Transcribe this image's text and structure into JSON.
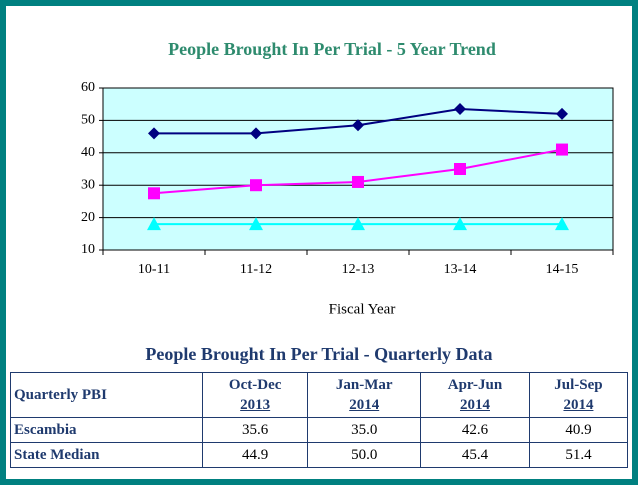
{
  "chart_data": {
    "type": "line",
    "title": "People Brought In Per Trial - 5 Year Trend",
    "x_label": "Fiscal Year",
    "categories": [
      "10-11",
      "11-12",
      "12-13",
      "13-14",
      "14-15"
    ],
    "series": [
      {
        "color": "#000080",
        "marker": "diamond",
        "values": [
          46,
          46,
          48.5,
          53.5,
          52
        ]
      },
      {
        "color": "#ff00ff",
        "marker": "square",
        "values": [
          27.5,
          30,
          31,
          35,
          41
        ]
      },
      {
        "color": "#00ffff",
        "marker": "triangle",
        "values": [
          18,
          18,
          18,
          18,
          18
        ]
      }
    ],
    "ylim": [
      10,
      60
    ],
    "yticks": [
      10,
      20,
      30,
      40,
      50,
      60
    ],
    "grid": true
  },
  "table": {
    "title": "People Brought In Per Trial - Quarterly Data",
    "corner": "Quarterly PBI",
    "headers": [
      {
        "period": "Oct-Dec",
        "year": "2013"
      },
      {
        "period": "Jan-Mar",
        "year": "2014"
      },
      {
        "period": "Apr-Jun",
        "year": "2014"
      },
      {
        "period": "Jul-Sep",
        "year": "2014"
      }
    ],
    "rows": [
      {
        "name": "Escambia",
        "cells": [
          "35.6",
          "35.0",
          "42.6",
          "40.9"
        ]
      },
      {
        "name": "State Median",
        "cells": [
          "44.9",
          "50.0",
          "45.4",
          "51.4"
        ]
      }
    ]
  }
}
